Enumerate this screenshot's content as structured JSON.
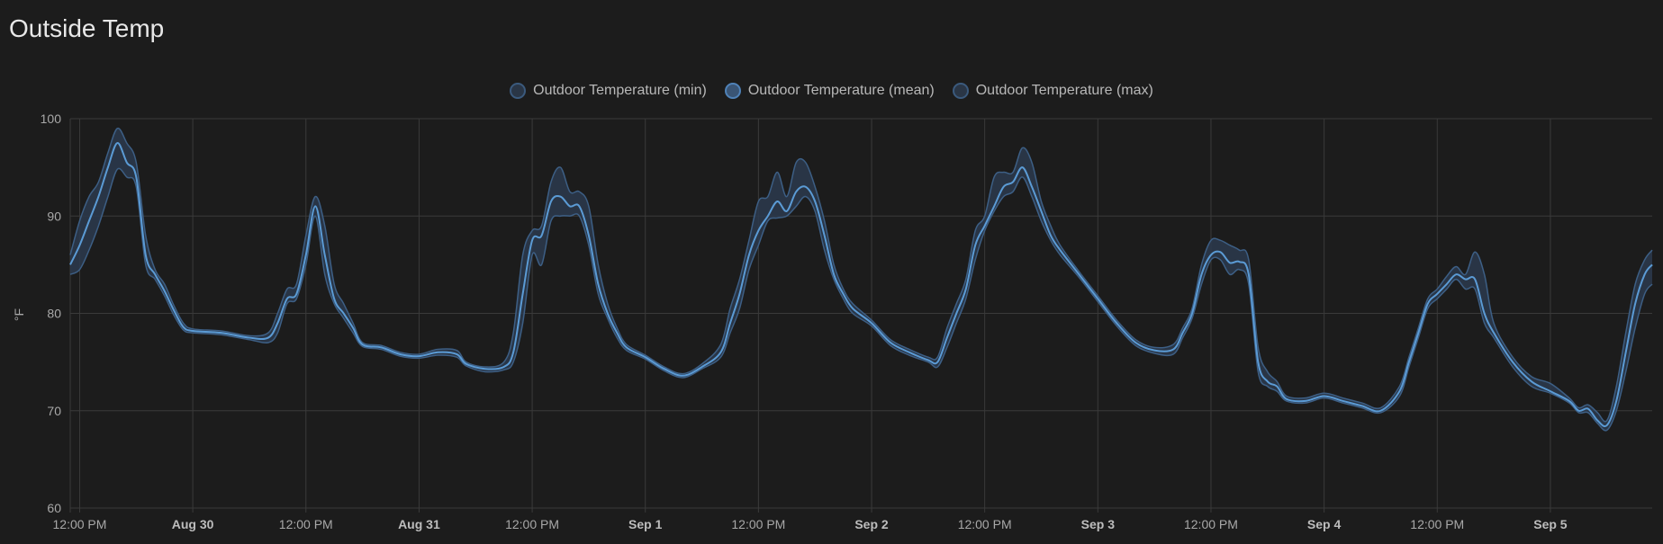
{
  "card": {
    "title": "Outside Temp"
  },
  "chart_data": {
    "type": "line",
    "title": "",
    "ylabel": "°F",
    "xlabel": "",
    "ylim": [
      60,
      100
    ],
    "yticks": [
      60,
      70,
      80,
      90,
      100
    ],
    "xlim": [
      "08-29 11:00",
      "09-05 10:48"
    ],
    "grid": true,
    "legend_placement": "top",
    "colors": {
      "background": "#1c1c1c",
      "mean_line": "#5b9bd5",
      "band_fill": "#2b3a4d",
      "band_edge": "#3d5f85",
      "grid": "#3a3a3a"
    },
    "legend": [
      {
        "name": "Outdoor Temperature (min)"
      },
      {
        "name": "Outdoor Temperature (mean)"
      },
      {
        "name": "Outdoor Temperature (max)"
      }
    ],
    "xticks": [
      {
        "at": "08-29 12:00",
        "label": "12:00 PM",
        "bold": false
      },
      {
        "at": "08-30 00:00",
        "label": "Aug 30",
        "bold": true
      },
      {
        "at": "08-30 12:00",
        "label": "12:00 PM",
        "bold": false
      },
      {
        "at": "08-31 00:00",
        "label": "Aug 31",
        "bold": true
      },
      {
        "at": "08-31 12:00",
        "label": "12:00 PM",
        "bold": false
      },
      {
        "at": "09-01 00:00",
        "label": "Sep 1",
        "bold": true
      },
      {
        "at": "09-01 12:00",
        "label": "12:00 PM",
        "bold": false
      },
      {
        "at": "09-02 00:00",
        "label": "Sep 2",
        "bold": true
      },
      {
        "at": "09-02 12:00",
        "label": "12:00 PM",
        "bold": false
      },
      {
        "at": "09-03 00:00",
        "label": "Sep 3",
        "bold": true
      },
      {
        "at": "09-03 12:00",
        "label": "12:00 PM",
        "bold": false
      },
      {
        "at": "09-04 00:00",
        "label": "Sep 4",
        "bold": true
      },
      {
        "at": "09-04 12:00",
        "label": "12:00 PM",
        "bold": false
      },
      {
        "at": "09-05 00:00",
        "label": "Sep 5",
        "bold": true
      }
    ],
    "columns": [
      "time",
      "min",
      "mean",
      "max"
    ],
    "rows": [
      [
        "08-29 11:00",
        84,
        85,
        86
      ],
      [
        "08-29 12:00",
        84.5,
        87,
        89.5
      ],
      [
        "08-29 13:00",
        86.5,
        89.5,
        92
      ],
      [
        "08-29 14:00",
        89,
        92,
        93.5
      ],
      [
        "08-29 15:00",
        92,
        95,
        96.5
      ],
      [
        "08-29 16:00",
        94.8,
        97.5,
        99
      ],
      [
        "08-29 17:00",
        94,
        95.5,
        97.5
      ],
      [
        "08-29 18:00",
        93,
        94,
        95.5
      ],
      [
        "08-29 19:00",
        85,
        86,
        88
      ],
      [
        "08-29 20:00",
        83.5,
        84,
        84.5
      ],
      [
        "08-29 21:00",
        81.8,
        82.3,
        83
      ],
      [
        "08-29 22:00",
        79.8,
        80.3,
        80.8
      ],
      [
        "08-29 23:00",
        78.3,
        78.6,
        79
      ],
      [
        "08-30 00:00",
        78,
        78.2,
        78.4
      ],
      [
        "08-30 03:00",
        77.8,
        78,
        78.2
      ],
      [
        "08-30 06:00",
        77.3,
        77.5,
        77.7
      ],
      [
        "08-30 08:00",
        77,
        77.5,
        78
      ],
      [
        "08-30 09:00",
        78,
        79,
        80
      ],
      [
        "08-30 10:00",
        81,
        81.5,
        82.5
      ],
      [
        "08-30 11:00",
        81.5,
        82,
        83
      ],
      [
        "08-30 12:00",
        85,
        86,
        88
      ],
      [
        "08-30 13:00",
        90,
        91,
        92
      ],
      [
        "08-30 14:00",
        84,
        86,
        89
      ],
      [
        "08-30 15:00",
        81,
        81.5,
        83
      ],
      [
        "08-30 16:00",
        79.5,
        80,
        81
      ],
      [
        "08-30 17:00",
        78,
        78.5,
        79
      ],
      [
        "08-30 18:00",
        76.6,
        76.8,
        77
      ],
      [
        "08-30 20:00",
        76.3,
        76.5,
        76.7
      ],
      [
        "08-30 22:00",
        75.6,
        75.8,
        76
      ],
      [
        "08-31 00:00",
        75.4,
        75.6,
        75.8
      ],
      [
        "08-31 02:00",
        75.7,
        76,
        76.3
      ],
      [
        "08-31 04:00",
        75.5,
        75.8,
        76.2
      ],
      [
        "08-31 05:00",
        74.6,
        74.8,
        75
      ],
      [
        "08-31 07:00",
        74,
        74.3,
        74.5
      ],
      [
        "08-31 09:00",
        74.2,
        74.5,
        75
      ],
      [
        "08-31 10:00",
        75,
        76,
        78
      ],
      [
        "08-31 11:00",
        79,
        82,
        86
      ],
      [
        "08-31 12:00",
        86,
        87.5,
        88.5
      ],
      [
        "08-31 13:00",
        85,
        88,
        89
      ],
      [
        "08-31 14:00",
        89.5,
        91.5,
        93.5
      ],
      [
        "08-31 15:00",
        90,
        92,
        95
      ],
      [
        "08-31 16:00",
        90,
        91,
        92.5
      ],
      [
        "08-31 17:00",
        90,
        91,
        92.5
      ],
      [
        "08-31 18:00",
        87,
        88,
        91
      ],
      [
        "08-31 19:00",
        82,
        83,
        85
      ],
      [
        "08-31 20:00",
        79.5,
        80,
        81
      ],
      [
        "08-31 21:00",
        77.5,
        78,
        78.5
      ],
      [
        "08-31 22:00",
        76.2,
        76.5,
        76.8
      ],
      [
        "09-01 00:00",
        75.3,
        75.5,
        75.7
      ],
      [
        "09-01 02:00",
        74.1,
        74.3,
        74.5
      ],
      [
        "09-01 04:00",
        73.4,
        73.6,
        73.8
      ],
      [
        "09-01 06:00",
        74.3,
        74.5,
        74.8
      ],
      [
        "09-01 08:00",
        75.5,
        76,
        76.8
      ],
      [
        "09-01 09:00",
        78,
        79,
        80.5
      ],
      [
        "09-01 10:00",
        80.5,
        82,
        83.5
      ],
      [
        "09-01 11:00",
        84.5,
        86,
        87.5
      ],
      [
        "09-01 12:00",
        87,
        88.5,
        91.5
      ],
      [
        "09-01 13:00",
        89.5,
        90,
        92
      ],
      [
        "09-01 14:00",
        89.8,
        91.5,
        94.5
      ],
      [
        "09-01 15:00",
        90,
        90.5,
        92
      ],
      [
        "09-01 16:00",
        91,
        92.5,
        95.5
      ],
      [
        "09-01 17:00",
        92,
        93,
        95.5
      ],
      [
        "09-01 18:00",
        90.5,
        91.5,
        93
      ],
      [
        "09-01 19:00",
        86.5,
        88,
        89.5
      ],
      [
        "09-01 20:00",
        83.5,
        84,
        85
      ],
      [
        "09-01 21:00",
        81.5,
        82,
        82.5
      ],
      [
        "09-01 22:00",
        80,
        80.5,
        81
      ],
      [
        "09-02 00:00",
        78.7,
        79,
        79.3
      ],
      [
        "09-02 02:00",
        76.7,
        77,
        77.3
      ],
      [
        "09-02 04:00",
        75.7,
        76,
        76.3
      ],
      [
        "09-02 06:00",
        75,
        75.2,
        75.5
      ],
      [
        "09-02 07:00",
        74.5,
        75,
        75.5
      ],
      [
        "09-02 08:00",
        76.5,
        77.5,
        78.5
      ],
      [
        "09-02 09:00",
        79,
        80,
        81
      ],
      [
        "09-02 10:00",
        81.5,
        82.5,
        83.5
      ],
      [
        "09-02 11:00",
        85.5,
        87,
        88.5
      ],
      [
        "09-02 12:00",
        88.5,
        89,
        90
      ],
      [
        "09-02 13:00",
        90.5,
        91,
        94
      ],
      [
        "09-02 14:00",
        92,
        93,
        94.5
      ],
      [
        "09-02 15:00",
        92.5,
        93.5,
        94.5
      ],
      [
        "09-02 16:00",
        94,
        95,
        97
      ],
      [
        "09-02 17:00",
        92,
        93,
        95.5
      ],
      [
        "09-02 18:00",
        89.5,
        90.5,
        91.5
      ],
      [
        "09-02 19:00",
        87.5,
        88,
        89
      ],
      [
        "09-02 20:00",
        86,
        86.5,
        87
      ],
      [
        "09-02 22:00",
        83.7,
        84,
        84.3
      ],
      [
        "09-03 00:00",
        81.2,
        81.5,
        81.8
      ],
      [
        "09-03 02:00",
        78.7,
        79,
        79.3
      ],
      [
        "09-03 04:00",
        76.7,
        77,
        77.3
      ],
      [
        "09-03 06:00",
        75.9,
        76.2,
        76.5
      ],
      [
        "09-03 08:00",
        75.8,
        76.3,
        76.8
      ],
      [
        "09-03 09:00",
        77.5,
        78,
        78.5
      ],
      [
        "09-03 10:00",
        79.5,
        80,
        80.5
      ],
      [
        "09-03 11:00",
        83,
        84,
        85
      ],
      [
        "09-03 12:00",
        85.5,
        86,
        87.5
      ],
      [
        "09-03 13:00",
        85.5,
        86.3,
        87.5
      ],
      [
        "09-03 14:00",
        84,
        85.2,
        87
      ],
      [
        "09-03 15:00",
        84.5,
        85.3,
        86.5
      ],
      [
        "09-03 16:00",
        83,
        84,
        85.5
      ],
      [
        "09-03 17:00",
        74,
        75,
        76.5
      ],
      [
        "09-03 18:00",
        72.5,
        73,
        74
      ],
      [
        "09-03 19:00",
        72,
        72.5,
        73
      ],
      [
        "09-03 20:00",
        71,
        71.2,
        71.5
      ],
      [
        "09-03 22:00",
        70.8,
        71,
        71.3
      ],
      [
        "09-04 00:00",
        71.3,
        71.5,
        71.8
      ],
      [
        "09-04 02:00",
        70.8,
        71,
        71.3
      ],
      [
        "09-04 04:00",
        70.3,
        70.5,
        70.8
      ],
      [
        "09-04 06:00",
        69.8,
        70,
        70.3
      ],
      [
        "09-04 08:00",
        71.5,
        72,
        72.5
      ],
      [
        "09-04 09:00",
        74.5,
        75,
        75.5
      ],
      [
        "09-04 10:00",
        77.5,
        78,
        78.5
      ],
      [
        "09-04 11:00",
        80.5,
        81,
        81.5
      ],
      [
        "09-04 12:00",
        81.5,
        82,
        82.5
      ],
      [
        "09-04 13:00",
        82.5,
        83,
        83.8
      ],
      [
        "09-04 14:00",
        83.5,
        84,
        84.8
      ],
      [
        "09-04 15:00",
        82.5,
        83.5,
        84
      ],
      [
        "09-04 16:00",
        82.5,
        83.5,
        86.3
      ],
      [
        "09-04 17:00",
        79,
        80,
        84
      ],
      [
        "09-04 18:00",
        77.5,
        78,
        79
      ],
      [
        "09-04 20:00",
        74.5,
        75,
        75.5
      ],
      [
        "09-04 22:00",
        72.5,
        73,
        73.5
      ],
      [
        "09-05 00:00",
        71.8,
        72,
        72.8
      ],
      [
        "09-05 02:00",
        70.8,
        71,
        71.3
      ],
      [
        "09-05 03:00",
        69.8,
        70,
        70.3
      ],
      [
        "09-05 04:00",
        69.8,
        70.2,
        70.6
      ],
      [
        "09-05 05:00",
        68.7,
        69,
        69.8
      ],
      [
        "09-05 06:00",
        68,
        68.5,
        69
      ],
      [
        "09-05 07:00",
        70,
        71,
        72.5
      ],
      [
        "09-05 08:00",
        74,
        76,
        78
      ],
      [
        "09-05 09:00",
        78.5,
        81,
        83
      ],
      [
        "09-05 10:00",
        82,
        84,
        85.5
      ],
      [
        "09-05 10:48",
        83,
        85,
        86.5
      ]
    ]
  }
}
